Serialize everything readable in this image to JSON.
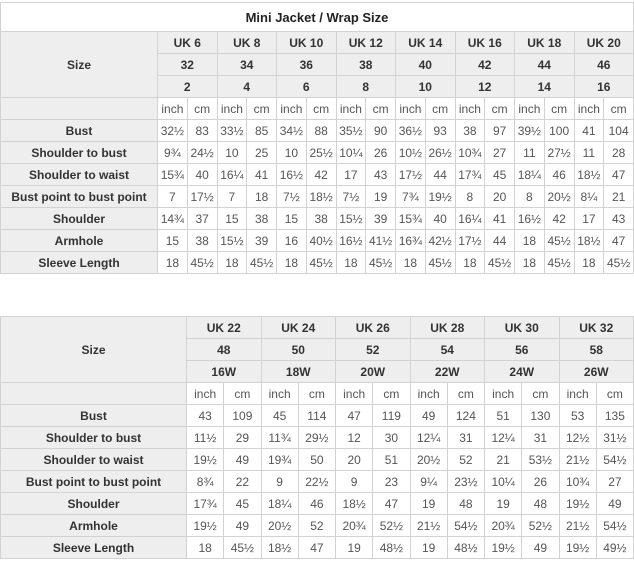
{
  "colors": {
    "header_background": "#eeeeee",
    "border": "#d2d2d2",
    "label_text": "#333333",
    "value_text": "#555555"
  },
  "chart_data": [
    {
      "type": "table",
      "title": "Mini Jacket / Wrap Size",
      "size_label": "Size",
      "header_rows": [
        [
          "UK 6",
          "UK 8",
          "UK 10",
          "UK 12",
          "UK 14",
          "UK 16",
          "UK 18",
          "UK 20"
        ],
        [
          "32",
          "34",
          "36",
          "38",
          "40",
          "42",
          "44",
          "46"
        ],
        [
          "2",
          "4",
          "6",
          "8",
          "10",
          "12",
          "14",
          "16"
        ]
      ],
      "units": [
        "inch",
        "cm"
      ],
      "rows": [
        {
          "label": "Bust",
          "values": [
            "32½",
            "83",
            "33½",
            "85",
            "34½",
            "88",
            "35½",
            "90",
            "36½",
            "93",
            "38",
            "97",
            "39½",
            "100",
            "41",
            "104"
          ]
        },
        {
          "label": "Shoulder to bust",
          "values": [
            "9¾",
            "24½",
            "10",
            "25",
            "10",
            "25½",
            "10¼",
            "26",
            "10½",
            "26½",
            "10¾",
            "27",
            "11",
            "27½",
            "11",
            "28"
          ]
        },
        {
          "label": "Shoulder to waist",
          "values": [
            "15¾",
            "40",
            "16¼",
            "41",
            "16½",
            "42",
            "17",
            "43",
            "17½",
            "44",
            "17¾",
            "45",
            "18¼",
            "46",
            "18½",
            "47"
          ]
        },
        {
          "label": "Bust point to bust point",
          "values": [
            "7",
            "17½",
            "7",
            "18",
            "7½",
            "18½",
            "7½",
            "19",
            "7¾",
            "19½",
            "8",
            "20",
            "8",
            "20½",
            "8¼",
            "21"
          ]
        },
        {
          "label": "Shoulder",
          "values": [
            "14¾",
            "37",
            "15",
            "38",
            "15",
            "38",
            "15½",
            "39",
            "15¾",
            "40",
            "16¼",
            "41",
            "16½",
            "42",
            "17",
            "43"
          ]
        },
        {
          "label": "Armhole",
          "values": [
            "15",
            "38",
            "15½",
            "39",
            "16",
            "40½",
            "16½",
            "41½",
            "16¾",
            "42½",
            "17½",
            "44",
            "18",
            "45½",
            "18½",
            "47"
          ]
        },
        {
          "label": "Sleeve Length",
          "values": [
            "18",
            "45½",
            "18",
            "45½",
            "18",
            "45½",
            "18",
            "45½",
            "18",
            "45½",
            "18",
            "45½",
            "18",
            "45½",
            "18",
            "45½"
          ]
        }
      ]
    },
    {
      "type": "table",
      "title": null,
      "size_label": "Size",
      "header_rows": [
        [
          "UK 22",
          "UK 24",
          "UK 26",
          "UK 28",
          "UK 30",
          "UK 32"
        ],
        [
          "48",
          "50",
          "52",
          "54",
          "56",
          "58"
        ],
        [
          "16W",
          "18W",
          "20W",
          "22W",
          "24W",
          "26W"
        ]
      ],
      "units": [
        "inch",
        "cm"
      ],
      "rows": [
        {
          "label": "Bust",
          "values": [
            "43",
            "109",
            "45",
            "114",
            "47",
            "119",
            "49",
            "124",
            "51",
            "130",
            "53",
            "135"
          ]
        },
        {
          "label": "Shoulder to bust",
          "values": [
            "11½",
            "29",
            "11¾",
            "29½",
            "12",
            "30",
            "12¼",
            "31",
            "12¼",
            "31",
            "12½",
            "31½"
          ]
        },
        {
          "label": "Shoulder to waist",
          "values": [
            "19½",
            "49",
            "19¾",
            "50",
            "20",
            "51",
            "20½",
            "52",
            "21",
            "53½",
            "21½",
            "54½"
          ]
        },
        {
          "label": "Bust point to bust point",
          "values": [
            "8¾",
            "22",
            "9",
            "22½",
            "9",
            "23",
            "9¼",
            "23½",
            "10¼",
            "26",
            "10¾",
            "27"
          ]
        },
        {
          "label": "Shoulder",
          "values": [
            "17¾",
            "45",
            "18¼",
            "46",
            "18½",
            "47",
            "19",
            "48",
            "19",
            "48",
            "19½",
            "49"
          ]
        },
        {
          "label": "Armhole",
          "values": [
            "19½",
            "49",
            "20½",
            "52",
            "20¾",
            "52½",
            "21½",
            "54½",
            "20¾",
            "52½",
            "21½",
            "54½"
          ]
        },
        {
          "label": "Sleeve Length",
          "values": [
            "18",
            "45½",
            "18½",
            "47",
            "19",
            "48½",
            "19",
            "48½",
            "19½",
            "49",
            "19½",
            "49½"
          ]
        }
      ]
    }
  ]
}
